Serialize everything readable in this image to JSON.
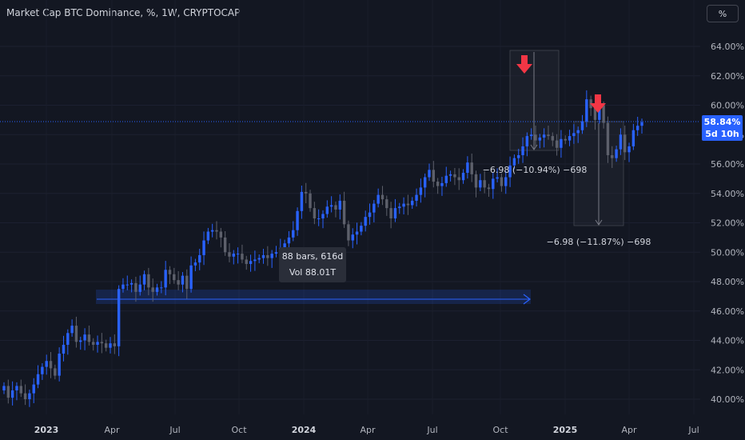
{
  "header": {
    "title": "Market Cap BTC Dominance, %, 1W, CRYPTOCAP",
    "unit_button": "%"
  },
  "colors": {
    "background": "#131722",
    "up": "#2962ff",
    "down": "#5d606b",
    "arrow": "#f23645",
    "current_price_line": "#2962ff"
  },
  "current_price": {
    "value": "58.84%",
    "countdown": "5d 10h"
  },
  "annotations": {
    "range_bars": "88 bars, 616d",
    "range_vol": "Vol 88.01T",
    "measure_1": "−6.98 (−10.94%) −698",
    "measure_2": "−6.98 (−11.87%) −698"
  },
  "chart_data": {
    "type": "candlestick",
    "title": "Market Cap BTC Dominance, %, 1W, CRYPTOCAP",
    "interval": "1W",
    "y_unit": "%",
    "ylim": [
      39.2,
      65.8
    ],
    "y_ticks": [
      "64.00%",
      "62.00%",
      "60.00%",
      "58.00%",
      "56.00%",
      "54.00%",
      "52.00%",
      "50.00%",
      "48.00%",
      "46.00%",
      "44.00%",
      "42.00%",
      "40.00%"
    ],
    "x_ticks": [
      "2023",
      "Apr",
      "Jul",
      "Oct",
      "2024",
      "Apr",
      "Jul",
      "Oct",
      "2025",
      "Apr",
      "Jul"
    ],
    "x_ticks_bold": [
      "2023",
      "2024",
      "2025"
    ],
    "last_value": 58.84,
    "candles_close": [
      40.9,
      40.1,
      40.6,
      40.9,
      40.4,
      40.0,
      40.4,
      41.0,
      41.7,
      42.2,
      42.6,
      42.1,
      41.6,
      43.1,
      43.7,
      44.5,
      45.0,
      43.9,
      44.0,
      44.4,
      43.9,
      43.7,
      43.9,
      43.8,
      43.5,
      43.8,
      43.6,
      47.5,
      47.8,
      47.8,
      47.9,
      47.3,
      47.8,
      48.5,
      47.6,
      47.3,
      47.6,
      47.6,
      48.8,
      48.5,
      48.1,
      47.8,
      48.4,
      47.5,
      49.1,
      49.3,
      49.8,
      50.8,
      51.4,
      51.5,
      51.4,
      51.0,
      50.0,
      49.7,
      49.9,
      49.9,
      49.5,
      49.2,
      49.4,
      49.5,
      49.6,
      49.8,
      49.6,
      49.9,
      50.0,
      50.3,
      50.6,
      51.0,
      51.5,
      52.8,
      54.1,
      54.0,
      53.0,
      52.3,
      52.3,
      52.6,
      53.1,
      53.2,
      52.9,
      53.5,
      51.9,
      50.8,
      51.2,
      51.4,
      51.8,
      52.4,
      52.7,
      53.3,
      53.9,
      53.6,
      53.0,
      52.3,
      53.0,
      53.1,
      53.3,
      53.2,
      53.5,
      53.9,
      54.4,
      55.1,
      55.6,
      54.8,
      54.5,
      54.7,
      55.2,
      55.3,
      55.1,
      54.9,
      55.4,
      56.1,
      55.3,
      54.4,
      54.9,
      54.4,
      54.3,
      55.0,
      55.1,
      54.5,
      55.1,
      55.9,
      56.4,
      56.6,
      57.2,
      57.9,
      58.0,
      57.6,
      57.8,
      58.0,
      57.9,
      57.6,
      57.1,
      57.7,
      57.6,
      57.9,
      58.1,
      58.3,
      58.9,
      60.4,
      59.8,
      59.0,
      60.0,
      58.8,
      56.6,
      56.4,
      57.0,
      58.0,
      56.8,
      57.2,
      58.3,
      58.6,
      58.84
    ]
  }
}
